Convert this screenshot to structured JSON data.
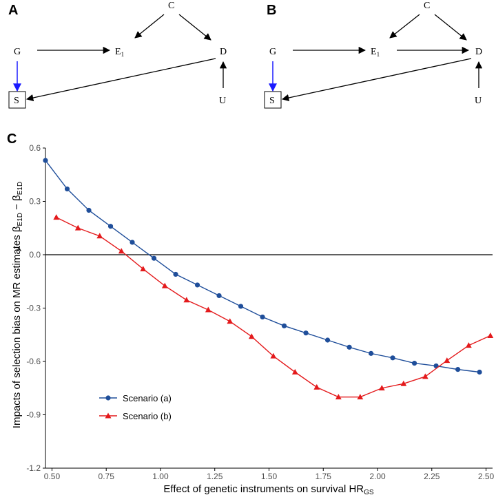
{
  "panels": {
    "a": {
      "label": "A"
    },
    "b": {
      "label": "B"
    },
    "c": {
      "label": "C"
    }
  },
  "dag": {
    "nodes": {
      "C": "C",
      "G": "G",
      "E": "E",
      "E_sub": "1",
      "D": "D",
      "S": "S",
      "U": "U"
    },
    "colors": {
      "edge": "#000000",
      "selection_edge": "#1a1aff"
    }
  },
  "chart_data": {
    "type": "line",
    "xlabel": "Effect of genetic instruments on survival HR",
    "xlabel_sub": "GS",
    "ylabel_prefix": "Impacts of selection bias on MR estimates ",
    "ylabel_beta_hat": "β",
    "ylabel_hat": "^",
    "ylabel_minus": " − β",
    "ylabel_sub": "E1D",
    "xlim": [
      0.47,
      2.53
    ],
    "ylim": [
      -1.2,
      0.6
    ],
    "xticks": [
      0.5,
      0.75,
      1.0,
      1.25,
      1.5,
      1.75,
      2.0,
      2.25,
      2.5
    ],
    "xtick_labels": [
      "0.50",
      "0.75",
      "1.00",
      "1.25",
      "1.50",
      "1.75",
      "2.00",
      "2.25",
      "2.50"
    ],
    "yticks": [
      0.6,
      0.3,
      0.0,
      -0.3,
      -0.6,
      -0.9,
      -1.2
    ],
    "ytick_labels": [
      "0.6",
      "0.3",
      "0.0",
      "-0.3",
      "-0.6",
      "-0.9",
      "-1.2"
    ],
    "hline": 0.0,
    "series": [
      {
        "name": "Scenario (a)",
        "color": "#1f4e9a",
        "marker": "circle",
        "x": [
          0.47,
          0.57,
          0.67,
          0.77,
          0.87,
          0.97,
          1.07,
          1.17,
          1.27,
          1.37,
          1.47,
          1.57,
          1.67,
          1.77,
          1.87,
          1.97,
          2.07,
          2.17,
          2.27,
          2.37,
          2.47
        ],
        "y": [
          0.53,
          0.37,
          0.25,
          0.16,
          0.07,
          -0.02,
          -0.11,
          -0.17,
          -0.23,
          -0.29,
          -0.35,
          -0.4,
          -0.44,
          -0.48,
          -0.52,
          -0.555,
          -0.58,
          -0.61,
          -0.625,
          -0.645,
          -0.66
        ]
      },
      {
        "name": "Scenario (b)",
        "color": "#e41a1c",
        "marker": "triangle",
        "x": [
          0.52,
          0.62,
          0.72,
          0.82,
          0.92,
          1.02,
          1.12,
          1.22,
          1.32,
          1.42,
          1.52,
          1.62,
          1.72,
          1.82,
          1.92,
          2.02,
          2.12,
          2.22,
          2.32,
          2.42,
          2.52
        ],
        "y": [
          0.21,
          0.15,
          0.105,
          0.02,
          -0.08,
          -0.175,
          -0.255,
          -0.31,
          -0.375,
          -0.46,
          -0.57,
          -0.66,
          -0.745,
          -0.8,
          -0.8,
          -0.75,
          -0.725,
          -0.685,
          -0.595,
          -0.51,
          -0.455
        ]
      }
    ],
    "legend": {
      "position": "bottom-left"
    }
  }
}
